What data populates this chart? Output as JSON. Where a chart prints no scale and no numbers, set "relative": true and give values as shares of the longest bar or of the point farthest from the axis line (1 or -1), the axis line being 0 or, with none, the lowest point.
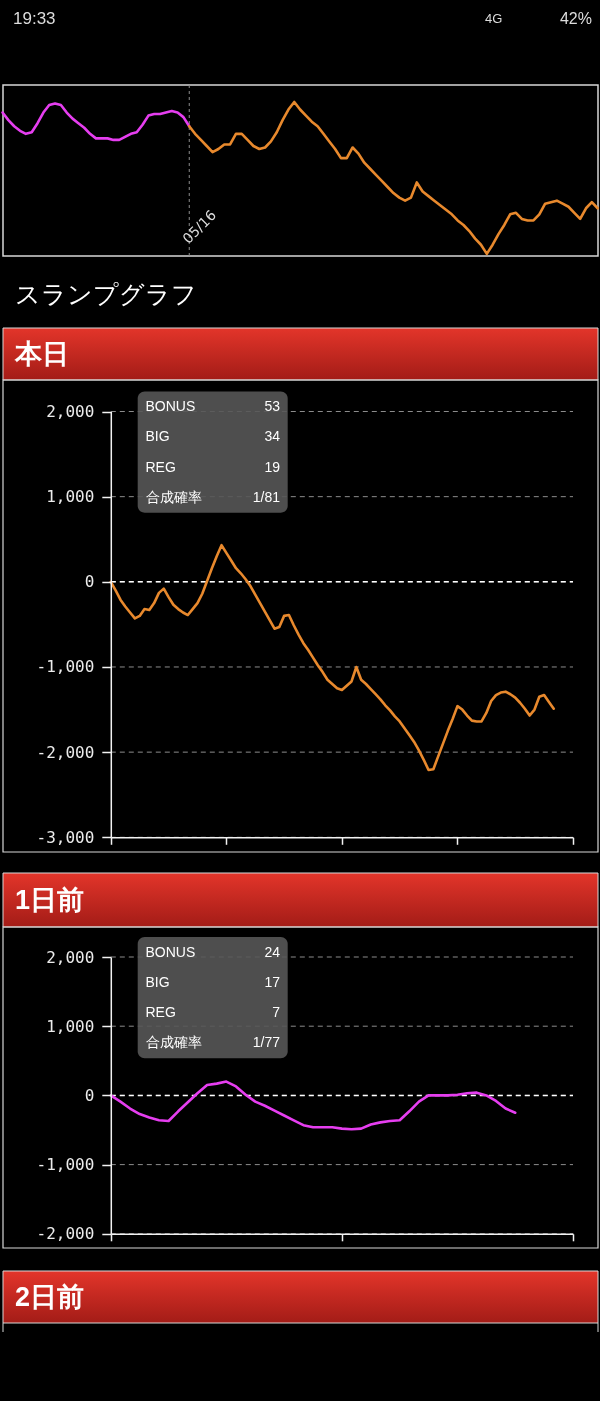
{
  "chart_data": [
    {
      "type": "line",
      "relative": true,
      "annotations": [
        "19:33",
        "4G",
        "42%",
        "05/16"
      ],
      "categories": [
        null,
        null,
        null,
        null,
        null,
        null,
        null,
        null,
        null,
        null,
        null,
        null,
        null,
        null,
        null,
        null,
        null,
        null,
        null,
        null,
        null,
        null,
        null,
        null,
        null,
        null,
        null,
        null,
        null,
        null,
        null,
        null,
        null,
        null,
        null,
        null,
        null,
        null,
        null,
        null,
        null,
        null,
        null,
        null,
        null,
        null,
        null,
        null,
        null,
        null,
        null,
        null,
        null,
        null,
        null,
        null,
        null,
        null,
        null,
        null,
        null,
        null,
        null,
        null,
        null,
        null,
        null,
        null,
        null,
        null,
        null,
        null,
        null,
        null,
        null,
        null,
        null,
        null,
        null,
        null,
        null,
        null,
        null,
        null,
        null,
        null,
        null,
        null,
        null,
        null,
        null,
        null,
        null,
        null,
        null,
        null,
        null,
        null,
        null,
        null,
        null,
        null,
        null
      ],
      "series": [
        {
          "color": "#e63ef0",
          "values": [
            0.93,
            0.88,
            0.84,
            0.81,
            0.79,
            0.8,
            0.86,
            0.93,
            0.98,
            0.99,
            0.98,
            0.93,
            0.89,
            0.86,
            0.83,
            0.79,
            0.76,
            0.76,
            0.76,
            0.75,
            0.75,
            0.77,
            0.79,
            0.8,
            0.85,
            0.91,
            0.92,
            0.92,
            0.93,
            0.94,
            0.93,
            0.9,
            0.84,
            null,
            null,
            null,
            null,
            null,
            null,
            null,
            null,
            null,
            null,
            null,
            null,
            null,
            null,
            null,
            null,
            null,
            null,
            null,
            null,
            null,
            null,
            null,
            null,
            null,
            null,
            null,
            null,
            null,
            null,
            null,
            null,
            null,
            null,
            null,
            null,
            null,
            null,
            null,
            null,
            null,
            null,
            null,
            null,
            null,
            null,
            null,
            null,
            null,
            null,
            null,
            null,
            null,
            null,
            null,
            null,
            null,
            null,
            null,
            null,
            null,
            null,
            null,
            null,
            null,
            null,
            null,
            null,
            null,
            null
          ]
        },
        {
          "color": "#e8892d",
          "values": [
            null,
            null,
            null,
            null,
            null,
            null,
            null,
            null,
            null,
            null,
            null,
            null,
            null,
            null,
            null,
            null,
            null,
            null,
            null,
            null,
            null,
            null,
            null,
            null,
            null,
            null,
            null,
            null,
            null,
            null,
            null,
            null,
            0.84,
            0.79,
            0.75,
            0.71,
            0.67,
            0.69,
            0.72,
            0.72,
            0.79,
            0.79,
            0.75,
            0.71,
            0.69,
            0.7,
            0.74,
            0.8,
            0.88,
            0.95,
            1,
            0.95,
            0.91,
            0.87,
            0.84,
            0.79,
            0.74,
            0.69,
            0.63,
            0.63,
            0.7,
            0.66,
            0.6,
            0.56,
            0.52,
            0.48,
            0.44,
            0.4,
            0.37,
            0.35,
            0.37,
            0.47,
            0.41,
            0.38,
            0.35,
            0.32,
            0.29,
            0.26,
            0.22,
            0.19,
            0.15,
            0.1,
            0.06,
            0,
            0.06,
            0.13,
            0.19,
            0.26,
            0.27,
            0.23,
            0.22,
            0.22,
            0.26,
            0.33,
            0.34,
            0.35,
            0.33,
            0.31,
            0.27,
            0.23,
            0.3,
            0.34,
            0.3
          ]
        }
      ]
    },
    {
      "type": "line",
      "title": "スランプグラフ",
      "subtitle": "本日",
      "categories": [
        null,
        null,
        null,
        null,
        null,
        null,
        null,
        null,
        null,
        null,
        null,
        null,
        null,
        null,
        null,
        null,
        null,
        null,
        null,
        null,
        null,
        null,
        null,
        null,
        null,
        null,
        null,
        null,
        null,
        null,
        null,
        null,
        null,
        null,
        null,
        null,
        null,
        null,
        null,
        null,
        null,
        null,
        null,
        null,
        null,
        null,
        null,
        null,
        null,
        null,
        null,
        null,
        null,
        null,
        null,
        null,
        null,
        null,
        null,
        null,
        null,
        null,
        null,
        null,
        null,
        null,
        null,
        null,
        null,
        null,
        null,
        null,
        null,
        null,
        null,
        null,
        null,
        null,
        null,
        null,
        null,
        null,
        null,
        null,
        null,
        null,
        null,
        null,
        null,
        null,
        null,
        null,
        null,
        null,
        null,
        null,
        null
      ],
      "series": [
        {
          "color": "#e8892d",
          "values": [
            0,
            -100,
            -210,
            -290,
            -360,
            -430,
            -400,
            -320,
            -330,
            -250,
            -130,
            -80,
            -180,
            -270,
            -320,
            -360,
            -390,
            -320,
            -250,
            -140,
            10,
            160,
            300,
            430,
            340,
            250,
            160,
            100,
            30,
            -50,
            -150,
            -250,
            -350,
            -450,
            -550,
            -530,
            -400,
            -390,
            -510,
            -620,
            -720,
            -800,
            -890,
            -980,
            -1060,
            -1150,
            -1200,
            -1250,
            -1270,
            -1220,
            -1170,
            -1000,
            -1150,
            -1200,
            -1260,
            -1320,
            -1380,
            -1450,
            -1510,
            -1580,
            -1640,
            -1720,
            -1800,
            -1880,
            -1980,
            -2090,
            -2210,
            -2200,
            -2050,
            -1900,
            -1750,
            -1610,
            -1460,
            -1500,
            -1570,
            -1630,
            -1640,
            -1640,
            -1540,
            -1400,
            -1330,
            -1300,
            -1290,
            -1320,
            -1360,
            -1420,
            -1490,
            -1570,
            -1500,
            -1350,
            -1330,
            -1410,
            -1490,
            null,
            null,
            null,
            null
          ]
        }
      ],
      "ylim": [
        -3000,
        2000
      ],
      "yticks": [
        {
          "value": -3000,
          "label": "-3,000"
        },
        {
          "value": -2000,
          "label": "-2,000"
        },
        {
          "value": -1000,
          "label": "-1,000"
        },
        0,
        {
          "value": 1000,
          "label": "1,000"
        },
        {
          "value": 2000,
          "label": "2,000"
        }
      ],
      "grid": "y",
      "ref_lines": [
        {
          "axis": "y",
          "value": 0,
          "color": "#ffffff",
          "line_style": "dashed"
        }
      ],
      "annotations": [
        "BONUS",
        "53",
        "BIG",
        "34",
        "REG",
        "19",
        "合成確率",
        "1/81"
      ]
    },
    {
      "type": "line",
      "title": "1日前",
      "categories": [
        null,
        null,
        null,
        null,
        null,
        null,
        null,
        null,
        null,
        null,
        null,
        null,
        null,
        null,
        null,
        null,
        null,
        null,
        null,
        null,
        null,
        null,
        null,
        null,
        null,
        null,
        null,
        null,
        null,
        null,
        null,
        null,
        null,
        null,
        null,
        null,
        null,
        null,
        null,
        null,
        null,
        null,
        null,
        null,
        null,
        null,
        null,
        null,
        null
      ],
      "series": [
        {
          "color": "#e63ef0",
          "values": [
            0,
            -90,
            -190,
            -270,
            -320,
            -360,
            -370,
            -230,
            -100,
            30,
            150,
            170,
            200,
            130,
            10,
            -90,
            -150,
            -220,
            -290,
            -360,
            -430,
            -460,
            -460,
            -460,
            -480,
            -490,
            -480,
            -420,
            -390,
            -370,
            -360,
            -230,
            -90,
            0,
            0,
            0,
            10,
            30,
            40,
            0,
            -80,
            -190,
            -250,
            null,
            null,
            null,
            null,
            null,
            null
          ]
        }
      ],
      "ylim": [
        -2000,
        2000
      ],
      "yticks": [
        {
          "value": -2000,
          "label": "-2,000"
        },
        {
          "value": -1000,
          "label": "-1,000"
        },
        0,
        {
          "value": 1000,
          "label": "1,000"
        },
        {
          "value": 2000,
          "label": "2,000"
        }
      ],
      "grid": "y",
      "ref_lines": [
        {
          "axis": "y",
          "value": 0,
          "color": "#ffffff",
          "line_style": "dashed"
        }
      ],
      "annotations": [
        "BONUS",
        "24",
        "BIG",
        "17",
        "REG",
        "7",
        "合成確率",
        "1/77"
      ]
    },
    {
      "type": "other",
      "title": "2日前"
    }
  ]
}
